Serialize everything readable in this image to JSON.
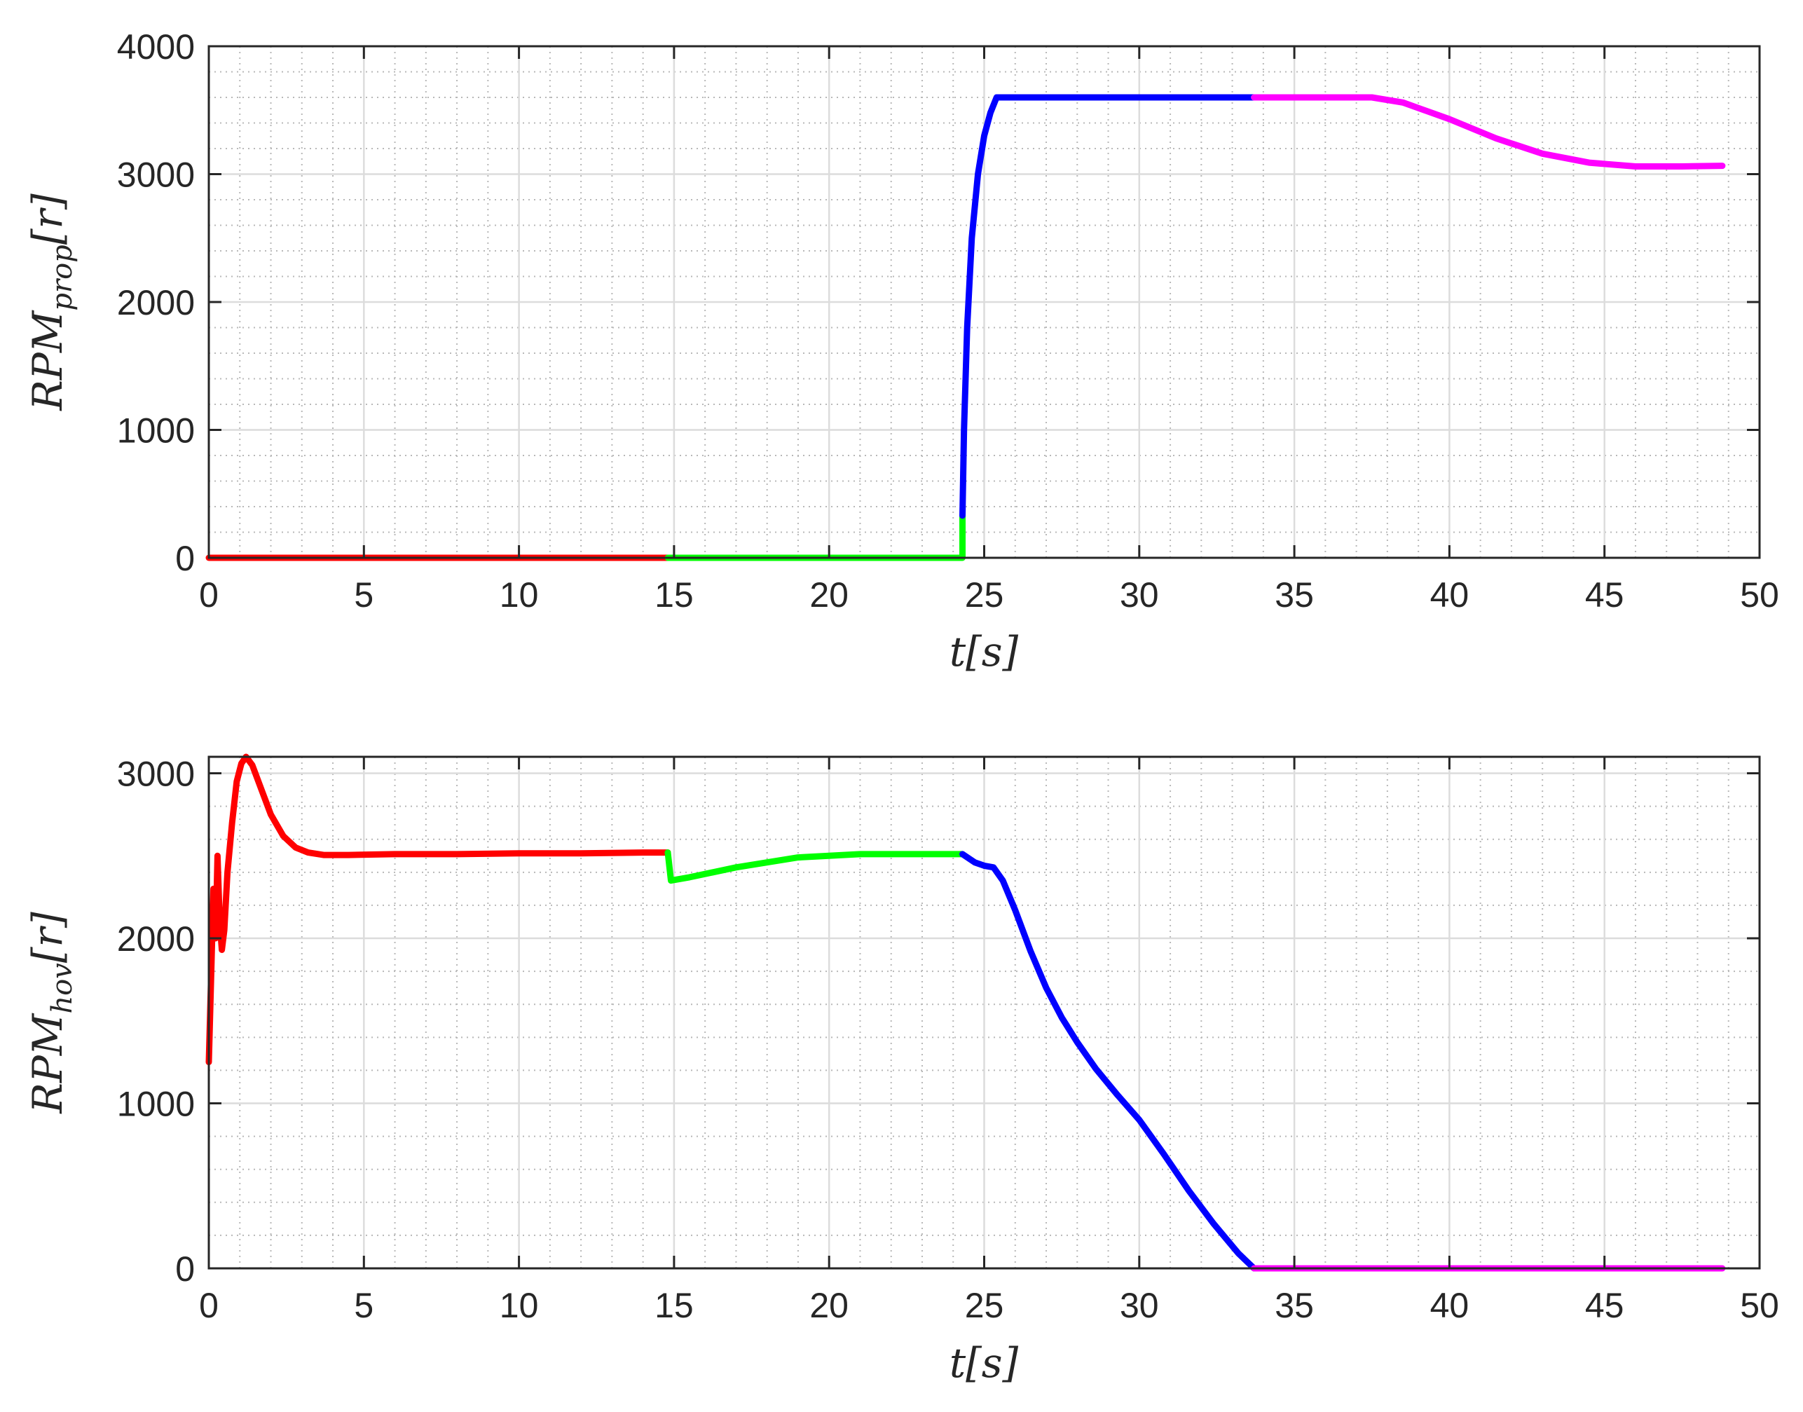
{
  "chart_data": [
    {
      "type": "line",
      "xlabel": "t[s]",
      "ylabel": "RPM_prop[r]",
      "ylabel_main": "RPM",
      "ylabel_sub": "prop",
      "ylabel_tail": "[r]",
      "xlim": [
        0,
        50
      ],
      "ylim": [
        0,
        4000
      ],
      "xticks": [
        0,
        5,
        10,
        15,
        20,
        25,
        30,
        35,
        40,
        45,
        50
      ],
      "yticks": [
        0,
        1000,
        2000,
        3000,
        4000
      ],
      "grid": "major and minor",
      "series": [
        {
          "color": "#ff0000",
          "x": [
            0,
            14.8
          ],
          "y": [
            0,
            0
          ]
        },
        {
          "color": "#00ff00",
          "x": [
            14.8,
            24.3,
            24.3
          ],
          "y": [
            0,
            0,
            330
          ]
        },
        {
          "color": "#0000ff",
          "x": [
            24.3,
            24.35,
            24.45,
            24.6,
            24.8,
            25.0,
            25.2,
            25.4,
            33.7
          ],
          "y": [
            330,
            1000,
            1800,
            2500,
            3000,
            3300,
            3480,
            3600,
            3600
          ]
        },
        {
          "color": "#ff00ff",
          "x": [
            33.7,
            37.5,
            38.5,
            40,
            41.5,
            43,
            44.5,
            46,
            47.5,
            48.8
          ],
          "y": [
            3600,
            3600,
            3560,
            3430,
            3280,
            3160,
            3090,
            3060,
            3060,
            3065
          ]
        }
      ]
    },
    {
      "type": "line",
      "xlabel": "t[s]",
      "ylabel": "RPM_hov[r]",
      "ylabel_main": "RPM",
      "ylabel_sub": "hov",
      "ylabel_tail": "[r]",
      "xlim": [
        0,
        50
      ],
      "ylim": [
        0,
        3100
      ],
      "xticks": [
        0,
        5,
        10,
        15,
        20,
        25,
        30,
        35,
        40,
        45,
        50
      ],
      "yticks": [
        0,
        1000,
        2000,
        3000
      ],
      "grid": "major and minor",
      "series": [
        {
          "color": "#ff0000",
          "x": [
            0,
            0.08,
            0.15,
            0.22,
            0.28,
            0.35,
            0.42,
            0.5,
            0.6,
            0.75,
            0.9,
            1.05,
            1.2,
            1.4,
            1.7,
            2.0,
            2.4,
            2.8,
            3.2,
            3.7,
            4.5,
            6,
            8,
            10,
            12,
            14,
            14.8
          ],
          "y": [
            1250,
            1800,
            2300,
            2000,
            2500,
            2100,
            1930,
            2050,
            2400,
            2700,
            2950,
            3060,
            3100,
            3050,
            2900,
            2750,
            2620,
            2550,
            2520,
            2505,
            2505,
            2510,
            2510,
            2515,
            2515,
            2520,
            2520
          ]
        },
        {
          "color": "#00ff00",
          "x": [
            14.8,
            14.9,
            15.5,
            17,
            19,
            21,
            23,
            24.3
          ],
          "y": [
            2520,
            2350,
            2370,
            2430,
            2490,
            2510,
            2510,
            2510
          ]
        },
        {
          "color": "#0000ff",
          "x": [
            24.3,
            24.7,
            25.0,
            25.3,
            25.6,
            26.0,
            26.5,
            27.0,
            27.5,
            28.0,
            28.6,
            29.3,
            30.0,
            30.8,
            31.6,
            32.4,
            33.2,
            33.7
          ],
          "y": [
            2510,
            2460,
            2440,
            2430,
            2350,
            2170,
            1920,
            1700,
            1520,
            1370,
            1210,
            1050,
            900,
            690,
            470,
            270,
            90,
            0
          ]
        },
        {
          "color": "#ff00ff",
          "x": [
            33.7,
            48.8
          ],
          "y": [
            0,
            0
          ]
        }
      ]
    }
  ]
}
